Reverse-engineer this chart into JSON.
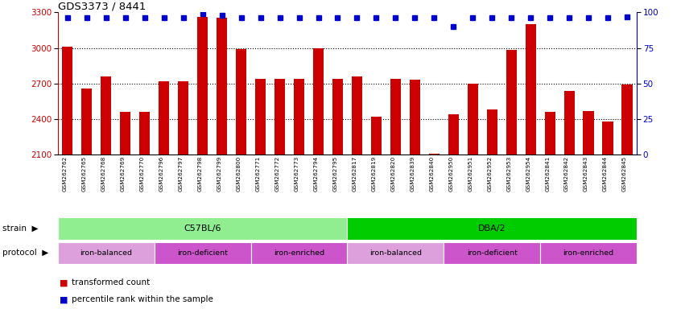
{
  "title": "GDS3373 / 8441",
  "samples": [
    "GSM262762",
    "GSM262765",
    "GSM262768",
    "GSM262769",
    "GSM262770",
    "GSM262796",
    "GSM262797",
    "GSM262798",
    "GSM262799",
    "GSM262800",
    "GSM262771",
    "GSM262772",
    "GSM262773",
    "GSM262794",
    "GSM262795",
    "GSM262817",
    "GSM262819",
    "GSM262820",
    "GSM262839",
    "GSM262840",
    "GSM262950",
    "GSM262951",
    "GSM262952",
    "GSM262953",
    "GSM262954",
    "GSM262841",
    "GSM262842",
    "GSM262843",
    "GSM262844",
    "GSM262845"
  ],
  "bar_values": [
    3010,
    2660,
    2760,
    2460,
    2460,
    2720,
    2720,
    3260,
    3255,
    2990,
    2740,
    2740,
    2740,
    3000,
    2740,
    2760,
    2420,
    2740,
    2730,
    2110,
    2440,
    2700,
    2480,
    2980,
    3200,
    2460,
    2640,
    2470,
    2380,
    2690
  ],
  "percentile_values": [
    96,
    96,
    96,
    96,
    96,
    96,
    96,
    99,
    98,
    96,
    96,
    96,
    96,
    96,
    96,
    96,
    96,
    96,
    96,
    96,
    90,
    96,
    96,
    96,
    96,
    96,
    96,
    96,
    96,
    97
  ],
  "bar_color": "#cc0000",
  "percentile_color": "#0000cc",
  "ylim_left": [
    2100,
    3300
  ],
  "ylim_right": [
    0,
    100
  ],
  "yticks_left": [
    2100,
    2400,
    2700,
    3000,
    3300
  ],
  "yticks_right": [
    0,
    25,
    50,
    75,
    100
  ],
  "strain_groups": [
    {
      "label": "C57BL/6",
      "start": 0,
      "end": 15,
      "color": "#90ee90"
    },
    {
      "label": "DBA/2",
      "start": 15,
      "end": 30,
      "color": "#00cc00"
    }
  ],
  "protocol_groups": [
    {
      "label": "iron-balanced",
      "start": 0,
      "end": 5,
      "color": "#dda0dd"
    },
    {
      "label": "iron-deficient",
      "start": 5,
      "end": 10,
      "color": "#cc55cc"
    },
    {
      "label": "iron-enriched",
      "start": 10,
      "end": 15,
      "color": "#cc55cc"
    },
    {
      "label": "iron-balanced",
      "start": 15,
      "end": 20,
      "color": "#dda0dd"
    },
    {
      "label": "iron-deficient",
      "start": 20,
      "end": 25,
      "color": "#cc55cc"
    },
    {
      "label": "iron-enriched",
      "start": 25,
      "end": 30,
      "color": "#cc55cc"
    }
  ],
  "background_color": "#ffffff"
}
